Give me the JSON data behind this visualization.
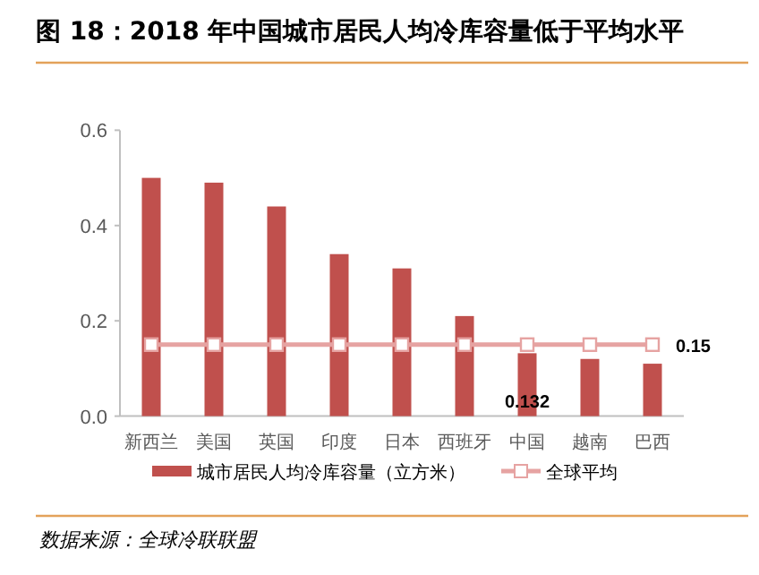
{
  "chart_data": {
    "type": "bar",
    "title": "图 18：2018 年中国城市居民人均冷库容量低于平均水平",
    "categories": [
      "新西兰",
      "美国",
      "英国",
      "印度",
      "日本",
      "西班牙",
      "中国",
      "越南",
      "巴西"
    ],
    "series": [
      {
        "name": "城市居民人均冷库容量（立方米）",
        "color": "#c0504d",
        "values": [
          0.5,
          0.49,
          0.44,
          0.34,
          0.31,
          0.21,
          0.132,
          0.12,
          0.11
        ],
        "value_labels": [
          null,
          null,
          null,
          null,
          null,
          null,
          "0.132",
          null,
          null
        ]
      },
      {
        "name": "全球平均",
        "type": "line",
        "color": "#e6a3a2",
        "marker": "square",
        "values": [
          0.15,
          0.15,
          0.15,
          0.15,
          0.15,
          0.15,
          0.15,
          0.15,
          0.15
        ],
        "value_labels": [
          null,
          null,
          null,
          null,
          null,
          null,
          null,
          null,
          "0.15"
        ]
      }
    ],
    "ylim": [
      0,
      0.6
    ],
    "yticks": [
      {
        "value": 0,
        "label": "0.0"
      },
      {
        "value": 0.2,
        "label": "0.2"
      },
      {
        "value": 0.4,
        "label": "0.4"
      },
      {
        "value": 0.6,
        "label": "0.6"
      }
    ],
    "grid": false,
    "legend": "bottom",
    "annotations": [
      "数据来源：全球冷联联盟"
    ]
  }
}
